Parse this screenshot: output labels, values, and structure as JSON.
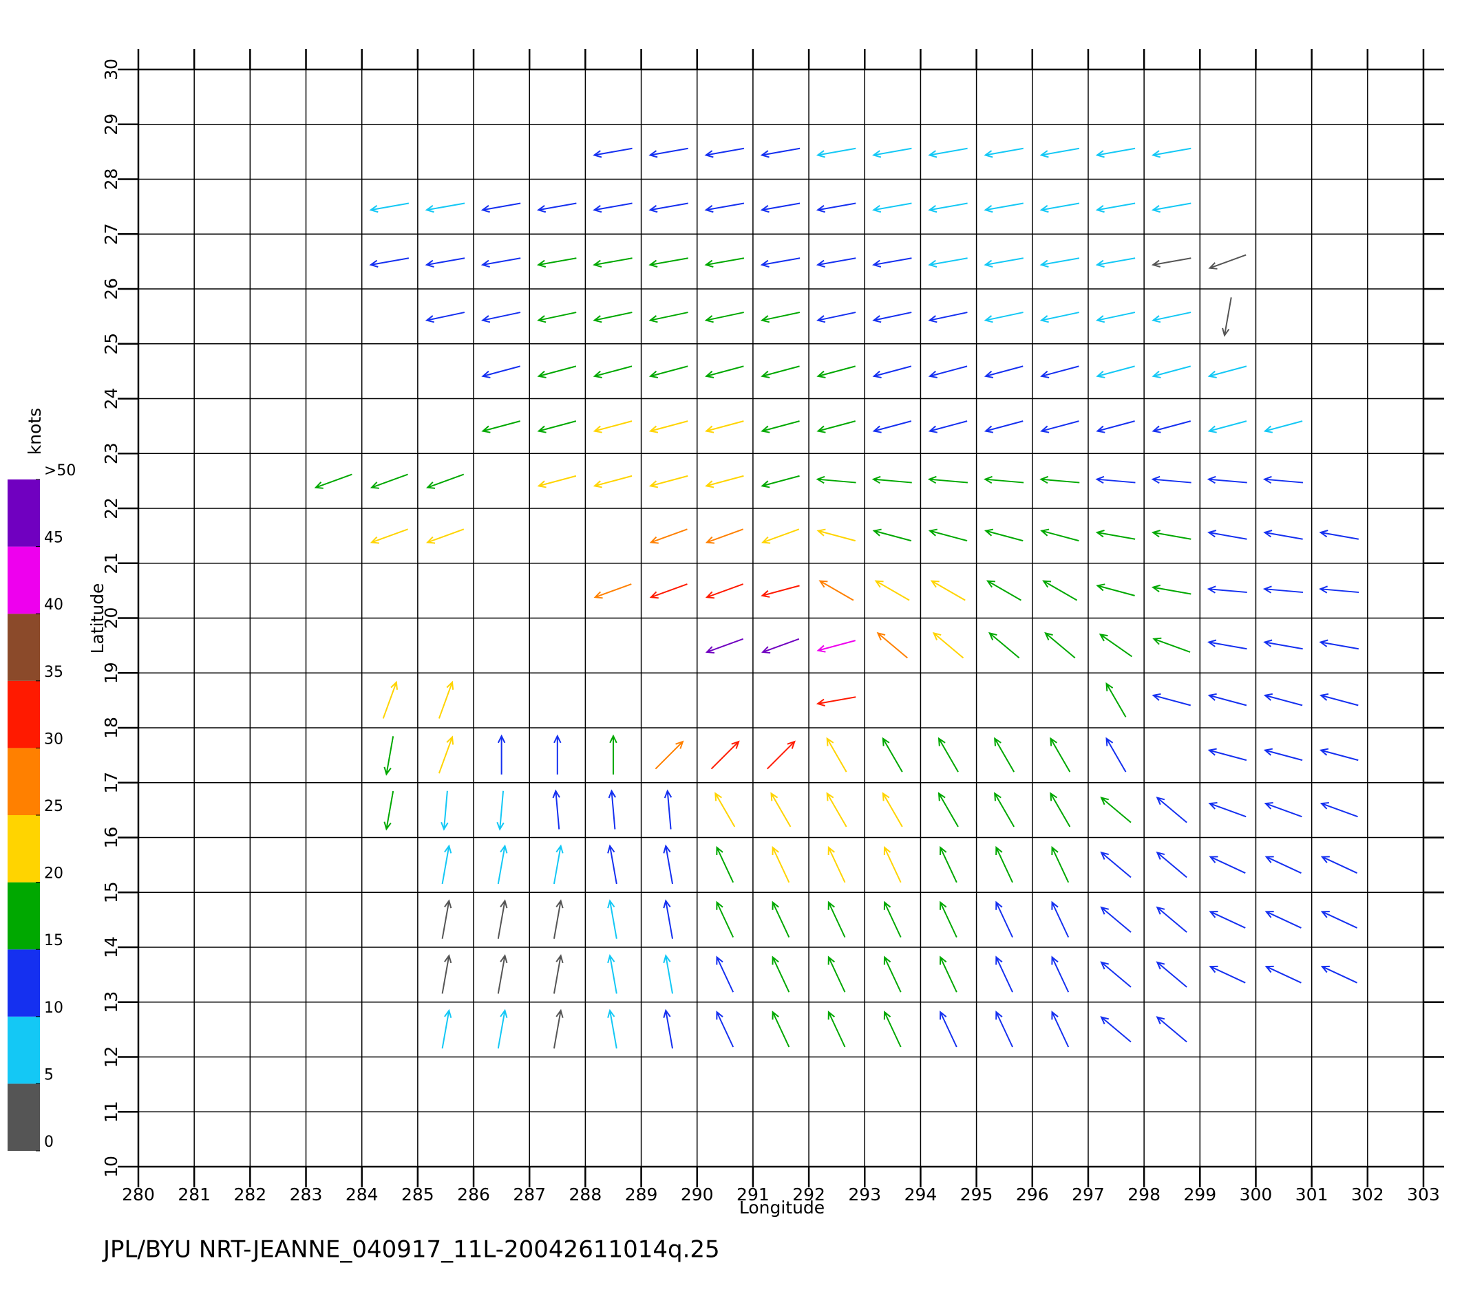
{
  "chart_data": {
    "type": "quiver",
    "footer": "JPL/BYU  NRT-JEANNE_040917_11L-20042611014q.25",
    "x_label": "Longitude",
    "y_label": "Latitude",
    "xlim": [
      280,
      303
    ],
    "ylim": [
      10,
      30
    ],
    "xticks": [
      280,
      281,
      282,
      283,
      284,
      285,
      286,
      287,
      288,
      289,
      290,
      291,
      292,
      293,
      294,
      295,
      296,
      297,
      298,
      299,
      300,
      301,
      302,
      303
    ],
    "yticks": [
      10,
      11,
      12,
      13,
      14,
      15,
      16,
      17,
      18,
      19,
      20,
      21,
      22,
      23,
      24,
      25,
      26,
      27,
      28,
      29,
      30
    ],
    "grid": true,
    "colorbar": {
      "label": "knots",
      "ticks": [
        0,
        5,
        10,
        15,
        20,
        25,
        30,
        35,
        40,
        45,
        {
          "value": 50,
          "label": ">50"
        }
      ],
      "colors": [
        "#555555",
        "#14c8f5",
        "#1530f0",
        "#00a800",
        "#ffd400",
        "#ff8000",
        "#ff1a00",
        "#8b4a2a",
        "#ee00ee",
        "#7000c0"
      ]
    },
    "rows": [
      {
        "lat": 28.5,
        "lon": [
          288.5,
          289.5,
          290.5,
          291.5,
          292.5,
          293.5,
          294.5,
          295.5,
          296.5,
          297.5,
          298.5
        ],
        "speed": [
          12,
          12,
          12,
          10,
          8,
          8,
          8,
          8,
          8,
          8,
          8
        ],
        "direction": [
          190,
          190,
          190,
          190,
          190,
          190,
          190,
          190,
          190,
          190,
          190
        ]
      },
      {
        "lat": 27.5,
        "lon": [
          284.5,
          285.5,
          286.5,
          287.5,
          288.5,
          289.5,
          290.5,
          291.5,
          292.5,
          293.5,
          294.5,
          295.5,
          296.5,
          297.5,
          298.5
        ],
        "speed": [
          9,
          9,
          10,
          11,
          12,
          13,
          13,
          12,
          10,
          8,
          7,
          7,
          7,
          8,
          7
        ],
        "direction": [
          190,
          190,
          190,
          190,
          190,
          190,
          190,
          190,
          190,
          190,
          190,
          190,
          190,
          190,
          190
        ]
      },
      {
        "lat": 26.5,
        "lon": [
          284.5,
          285.5,
          286.5,
          287.5,
          288.5,
          289.5,
          290.5,
          291.5,
          292.5,
          293.5,
          294.5,
          295.5,
          296.5,
          297.5,
          298.5,
          299.5
        ],
        "speed": [
          10,
          11,
          12,
          16,
          17,
          18,
          17,
          13,
          12,
          12,
          9,
          8,
          7,
          6,
          4,
          3
        ],
        "direction": [
          190,
          190,
          190,
          190,
          190,
          190,
          190,
          190,
          190,
          190,
          190,
          190,
          190,
          190,
          190,
          200
        ]
      },
      {
        "lat": 25.5,
        "lon": [
          285.5,
          286.5,
          287.5,
          288.5,
          289.5,
          290.5,
          291.5,
          292.5,
          293.5,
          294.5,
          295.5,
          296.5,
          297.5,
          298.5,
          299.5
        ],
        "speed": [
          12,
          13,
          17,
          17,
          18,
          18,
          17,
          14,
          13,
          12,
          9,
          8,
          7,
          6,
          4
        ],
        "direction": [
          192,
          192,
          192,
          192,
          192,
          192,
          192,
          192,
          192,
          192,
          192,
          192,
          192,
          192,
          260
        ]
      },
      {
        "lat": 24.5,
        "lon": [
          286.5,
          287.5,
          288.5,
          289.5,
          290.5,
          291.5,
          292.5,
          293.5,
          294.5,
          295.5,
          296.5,
          297.5,
          298.5,
          299.5
        ],
        "speed": [
          13,
          16,
          18,
          18,
          19,
          18,
          16,
          13,
          13,
          12,
          11,
          9,
          8,
          7
        ],
        "direction": [
          195,
          195,
          195,
          195,
          195,
          195,
          195,
          195,
          195,
          195,
          195,
          195,
          195,
          195
        ]
      },
      {
        "lat": 23.5,
        "lon": [
          286.5,
          287.5,
          288.5,
          289.5,
          290.5,
          291.5,
          292.5,
          293.5,
          294.5,
          295.5,
          296.5,
          297.5,
          298.5,
          299.5,
          300.5
        ],
        "speed": [
          16,
          18,
          21,
          22,
          21,
          18,
          17,
          14,
          13,
          13,
          12,
          12,
          10,
          9,
          9
        ],
        "direction": [
          195,
          195,
          195,
          195,
          195,
          195,
          195,
          195,
          195,
          195,
          195,
          195,
          195,
          195,
          195
        ]
      },
      {
        "lat": 22.5,
        "lon": [
          283.5,
          284.5,
          285.5,
          287.5,
          288.5,
          289.5,
          290.5,
          291.5,
          292.5,
          293.5,
          294.5,
          295.5,
          296.5,
          297.5,
          298.5,
          299.5,
          300.5
        ],
        "speed": [
          18,
          18,
          19,
          20,
          22,
          22,
          21,
          19,
          18,
          18,
          16,
          16,
          15,
          14,
          13,
          12,
          11
        ],
        "direction": [
          200,
          200,
          200,
          195,
          195,
          195,
          195,
          195,
          175,
          175,
          175,
          175,
          175,
          175,
          175,
          175,
          175
        ]
      },
      {
        "lat": 21.5,
        "lon": [
          284.5,
          285.5,
          289.5,
          290.5,
          291.5,
          292.5,
          293.5,
          294.5,
          295.5,
          296.5,
          297.5,
          298.5,
          299.5,
          300.5,
          301.5
        ],
        "speed": [
          22,
          21,
          28,
          26,
          24,
          22,
          18,
          18,
          17,
          16,
          16,
          15,
          14,
          13,
          12
        ],
        "direction": [
          200,
          200,
          200,
          200,
          200,
          165,
          165,
          165,
          165,
          165,
          170,
          170,
          170,
          170,
          170
        ]
      },
      {
        "lat": 20.5,
        "lon": [
          288.5,
          289.5,
          290.5,
          291.5,
          292.5,
          293.5,
          294.5,
          295.5,
          296.5,
          297.5,
          298.5,
          299.5,
          300.5,
          301.5
        ],
        "speed": [
          27,
          30,
          32,
          33,
          26,
          22,
          21,
          19,
          18,
          18,
          17,
          14,
          12,
          11
        ],
        "direction": [
          200,
          200,
          200,
          195,
          150,
          150,
          150,
          150,
          150,
          165,
          170,
          175,
          175,
          175
        ]
      },
      {
        "lat": 19.5,
        "lon": [
          290.5,
          291.5,
          292.5,
          293.5,
          294.5,
          295.5,
          296.5,
          297.5,
          298.5,
          299.5,
          300.5,
          301.5
        ],
        "speed": [
          46,
          47,
          44,
          28,
          22,
          19,
          18,
          17,
          16,
          13,
          12,
          11
        ],
        "direction": [
          200,
          200,
          195,
          140,
          140,
          140,
          140,
          145,
          160,
          170,
          170,
          170
        ]
      },
      {
        "lat": 18.5,
        "lon": [
          284.5,
          285.5,
          292.5,
          297.5,
          298.5,
          299.5,
          300.5,
          301.5
        ],
        "speed": [
          22,
          22,
          30,
          17,
          12,
          12,
          11,
          11
        ],
        "direction": [
          70,
          70,
          190,
          120,
          165,
          165,
          165,
          165
        ]
      },
      {
        "lat": 17.5,
        "lon": [
          284.5,
          285.5,
          286.5,
          287.5,
          288.5,
          289.5,
          290.5,
          291.5,
          292.5,
          293.5,
          294.5,
          295.5,
          296.5,
          297.5,
          299.5,
          300.5,
          301.5
        ],
        "speed": [
          18,
          20,
          10,
          12,
          17,
          27,
          30,
          30,
          22,
          19,
          18,
          17,
          17,
          14,
          12,
          12,
          11
        ],
        "direction": [
          260,
          70,
          90,
          90,
          90,
          45,
          45,
          45,
          120,
          120,
          120,
          120,
          120,
          120,
          165,
          165,
          165
        ]
      },
      {
        "lat": 16.5,
        "lon": [
          284.5,
          285.5,
          286.5,
          287.5,
          288.5,
          289.5,
          290.5,
          291.5,
          292.5,
          293.5,
          294.5,
          295.5,
          296.5,
          297.5,
          298.5,
          299.5,
          300.5,
          301.5
        ],
        "speed": [
          17,
          8,
          9,
          10,
          12,
          13,
          20,
          21,
          22,
          20,
          19,
          18,
          17,
          16,
          14,
          12,
          12,
          12
        ],
        "direction": [
          260,
          265,
          265,
          95,
          95,
          95,
          120,
          120,
          120,
          120,
          120,
          120,
          120,
          140,
          140,
          160,
          160,
          160
        ]
      },
      {
        "lat": 15.5,
        "lon": [
          285.5,
          286.5,
          287.5,
          288.5,
          289.5,
          290.5,
          291.5,
          292.5,
          293.5,
          294.5,
          295.5,
          296.5,
          297.5,
          298.5,
          299.5,
          300.5,
          301.5
        ],
        "speed": [
          7,
          6,
          8,
          10,
          12,
          18,
          20,
          21,
          20,
          18,
          17,
          16,
          14,
          13,
          12,
          12,
          12
        ],
        "direction": [
          80,
          80,
          80,
          100,
          100,
          115,
          115,
          115,
          115,
          115,
          115,
          115,
          140,
          140,
          155,
          155,
          155
        ]
      },
      {
        "lat": 14.5,
        "lon": [
          285.5,
          286.5,
          287.5,
          288.5,
          289.5,
          290.5,
          291.5,
          292.5,
          293.5,
          294.5,
          295.5,
          296.5,
          297.5,
          298.5,
          299.5,
          300.5,
          301.5
        ],
        "speed": [
          3,
          4,
          3,
          7,
          10,
          15,
          17,
          18,
          17,
          16,
          14,
          13,
          13,
          14,
          12,
          12,
          12
        ],
        "direction": [
          80,
          80,
          80,
          100,
          100,
          115,
          115,
          115,
          115,
          115,
          115,
          115,
          140,
          140,
          155,
          155,
          155
        ]
      },
      {
        "lat": 13.5,
        "lon": [
          285.5,
          286.5,
          287.5,
          288.5,
          289.5,
          290.5,
          291.5,
          292.5,
          293.5,
          294.5,
          295.5,
          296.5,
          297.5,
          298.5,
          299.5,
          300.5,
          301.5
        ],
        "speed": [
          3,
          3,
          3,
          5,
          9,
          14,
          16,
          17,
          16,
          15,
          13,
          12,
          12,
          13,
          11,
          12,
          11
        ],
        "direction": [
          80,
          80,
          80,
          100,
          100,
          115,
          115,
          115,
          115,
          115,
          115,
          115,
          140,
          140,
          155,
          155,
          155
        ]
      },
      {
        "lat": 12.5,
        "lon": [
          285.5,
          286.5,
          287.5,
          288.5,
          289.5,
          290.5,
          291.5,
          292.5,
          293.5,
          294.5,
          295.5,
          296.5,
          297.5,
          298.5
        ],
        "speed": [
          8,
          6,
          4,
          6,
          13,
          13,
          15,
          16,
          16,
          14,
          13,
          12,
          12,
          12
        ],
        "direction": [
          80,
          80,
          80,
          100,
          100,
          115,
          115,
          115,
          115,
          115,
          115,
          115,
          140,
          140
        ]
      }
    ]
  }
}
